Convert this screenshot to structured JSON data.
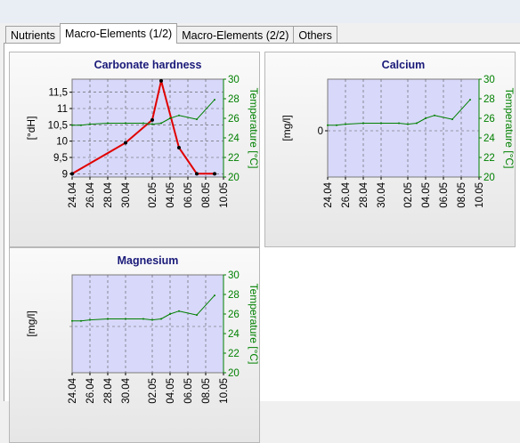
{
  "tabs": [
    {
      "label": "Nutrients",
      "active": false
    },
    {
      "label": "Macro-Elements (1/2)",
      "active": true
    },
    {
      "label": "Macro-Elements (2/2)",
      "active": false
    },
    {
      "label": "Others",
      "active": false
    }
  ],
  "colors": {
    "title": "#1a1a7a",
    "plot_bg": "#d8d8fa",
    "temperature": "#008000",
    "hardness_line": "#e00000",
    "marker": "#000000"
  },
  "chart_data": [
    {
      "id": "carbonate",
      "type": "line",
      "title": "Carbonate hardness",
      "ylabel": "[°dH]",
      "y2label": "Temperature [°C]",
      "x_ticks": [
        "24.04",
        "26.04",
        "28.04",
        "30.04",
        "02.05",
        "04.05",
        "06.05",
        "08.05",
        "10.05"
      ],
      "xlim": [
        "24.04",
        "10.05"
      ],
      "ylim": [
        8.9,
        11.9
      ],
      "y_ticks": [
        "9",
        "9,5",
        "10",
        "10,5",
        "11",
        "11,5"
      ],
      "y2lim": [
        20,
        30
      ],
      "y2_ticks": [
        "20",
        "22",
        "24",
        "26",
        "28",
        "30"
      ],
      "grid": true,
      "series": [
        {
          "axis": "left",
          "color": "#e00000",
          "x": [
            "24.04",
            "30.04",
            "02.05",
            "03.05",
            "05.05",
            "07.05",
            "09.05"
          ],
          "y": [
            9.0,
            9.95,
            10.65,
            11.85,
            9.8,
            9.0,
            9.0
          ]
        },
        {
          "axis": "right",
          "color": "#008000",
          "x": [
            "24.04",
            "25.04",
            "26.04",
            "28.04",
            "30.04",
            "01.05",
            "02.05",
            "03.05",
            "04.05",
            "05.05",
            "07.05",
            "09.05"
          ],
          "y": [
            25.3,
            25.3,
            25.4,
            25.5,
            25.5,
            25.5,
            25.4,
            25.5,
            26.0,
            26.3,
            25.9,
            27.9
          ]
        }
      ]
    },
    {
      "id": "calcium",
      "type": "line",
      "title": "Calcium",
      "ylabel": "[mg/l]",
      "y2label": "Temperature [°C]",
      "x_ticks": [
        "24.04",
        "26.04",
        "28.04",
        "30.04",
        "02.05",
        "04.05",
        "06.05",
        "08.05",
        "10.05"
      ],
      "xlim": [
        "24.04",
        "10.05"
      ],
      "y_ticks": [
        "0"
      ],
      "y2lim": [
        20,
        30
      ],
      "y2_ticks": [
        "20",
        "22",
        "24",
        "26",
        "28",
        "30"
      ],
      "grid": true,
      "series": [
        {
          "axis": "right",
          "color": "#008000",
          "x": [
            "24.04",
            "25.04",
            "26.04",
            "28.04",
            "30.04",
            "01.05",
            "02.05",
            "03.05",
            "04.05",
            "05.05",
            "07.05",
            "09.05"
          ],
          "y": [
            25.3,
            25.3,
            25.4,
            25.5,
            25.5,
            25.5,
            25.4,
            25.5,
            26.0,
            26.3,
            25.9,
            27.9
          ]
        }
      ]
    },
    {
      "id": "magnesium",
      "type": "line",
      "title": "Magnesium",
      "ylabel": "[mg/l]",
      "y2label": "Temperature [°C]",
      "x_ticks": [
        "24.04",
        "26.04",
        "28.04",
        "30.04",
        "02.05",
        "04.05",
        "06.05",
        "08.05",
        "10.05"
      ],
      "xlim": [
        "24.04",
        "10.05"
      ],
      "y2lim": [
        20,
        30
      ],
      "y2_ticks": [
        "20",
        "22",
        "24",
        "26",
        "28",
        "30"
      ],
      "grid": true,
      "series": [
        {
          "axis": "right",
          "color": "#008000",
          "x": [
            "24.04",
            "25.04",
            "26.04",
            "28.04",
            "30.04",
            "01.05",
            "02.05",
            "03.05",
            "04.05",
            "05.05",
            "07.05",
            "09.05"
          ],
          "y": [
            25.3,
            25.3,
            25.4,
            25.5,
            25.5,
            25.5,
            25.4,
            25.5,
            26.0,
            26.3,
            25.9,
            27.9
          ]
        }
      ]
    }
  ]
}
